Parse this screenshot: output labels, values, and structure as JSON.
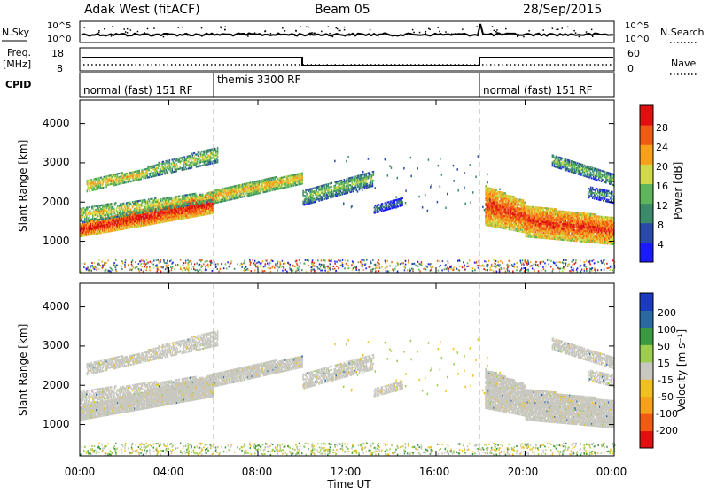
{
  "header": {
    "site": "Adak West (fitACF)",
    "beam": "Beam 05",
    "date": "28/Sep/2015"
  },
  "summary_panels": {
    "nsky_label": "N.Sky",
    "nsky_ticks": [
      "10^5",
      "10^0"
    ],
    "nsearch_label": "N.Search",
    "nsearch_ticks": [
      "10^5",
      "10^0"
    ],
    "freq_label_1": "Freq.",
    "freq_label_2": "[MHz]",
    "freq_ticks": [
      "18",
      "8"
    ],
    "nave_label": "Nave",
    "nave_ticks": [
      "60",
      "0"
    ],
    "cpid_label": "CPID",
    "cpid_segments": [
      {
        "label": "normal (fast) 151 RF",
        "start": 0,
        "end": 6
      },
      {
        "label": "themis 3300 RF",
        "start": 6,
        "end": 18
      },
      {
        "label": "normal (fast) 151 RF",
        "start": 18,
        "end": 24
      }
    ]
  },
  "power_panel": {
    "ylabel": "Slant Range [km]",
    "yticks": [
      "1000",
      "2000",
      "3000",
      "4000"
    ],
    "colorbar_label": "Power [dB]",
    "colorbar_ticks": [
      "4",
      "8",
      "12",
      "16",
      "20",
      "24",
      "28"
    ],
    "colorbar_colors": [
      "#1a1aff",
      "#2a4aa8",
      "#3b8a6a",
      "#5fb55a",
      "#cfd94a",
      "#f7a11a",
      "#f05a14",
      "#e01010"
    ]
  },
  "velocity_panel": {
    "ylabel": "Slant Range [km]",
    "yticks": [
      "1000",
      "2000",
      "3000",
      "4000"
    ],
    "colorbar_label": "Velocity [m s⁻¹]",
    "colorbar_ticks": [
      "-200",
      "-100",
      "-50",
      "-15",
      "15",
      "50",
      "100",
      "200"
    ],
    "colorbar_colors": [
      "#e01010",
      "#f05a14",
      "#f5a21a",
      "#f0c020",
      "#c8c8c0",
      "#9ccc50",
      "#3a9a40",
      "#2a6aa0",
      "#1a3ac0"
    ]
  },
  "xaxis": {
    "label": "Time UT",
    "ticks": [
      "00:00",
      "04:00",
      "08:00",
      "12:00",
      "16:00",
      "20:00",
      "00:00"
    ]
  },
  "chart_data": [
    {
      "type": "heatmap",
      "title": "Adak West (fitACF)  Beam 05  28/Sep/2015",
      "xlabel": "Time UT",
      "ylabel": "Slant Range [km]",
      "xlim": [
        0,
        24
      ],
      "ylim": [
        200,
        4600
      ],
      "colorbar": "Power [dB]",
      "colorbar_range": [
        0,
        32
      ],
      "scatter_bands": [
        {
          "t_start": 0.0,
          "t_end": 2.0,
          "r_start": 1200,
          "r_end": 1400,
          "value": 28
        },
        {
          "t_start": 2.0,
          "t_end": 6.0,
          "r_start": 1500,
          "r_end": 2100,
          "value": 24
        },
        {
          "t_start": 0.5,
          "t_end": 2.5,
          "r_start": 2200,
          "r_end": 2600,
          "value": 20
        },
        {
          "t_start": 2.5,
          "t_end": 6.0,
          "r_start": 2700,
          "r_end": 3300,
          "value": 16
        },
        {
          "t_start": 6.0,
          "t_end": 10.0,
          "r_start": 2000,
          "r_end": 2800,
          "value": 20
        },
        {
          "t_start": 10.0,
          "t_end": 13.0,
          "r_start": 2000,
          "r_end": 2700,
          "value": 16
        },
        {
          "t_start": 18.5,
          "t_end": 24.0,
          "r_start": 1100,
          "r_end": 2000,
          "value": 26
        },
        {
          "t_start": 21.5,
          "t_end": 24.0,
          "r_start": 2400,
          "r_end": 3200,
          "value": 16
        }
      ]
    },
    {
      "type": "heatmap",
      "title": "",
      "xlabel": "Time UT",
      "ylabel": "Slant Range [km]",
      "xlim": [
        0,
        24
      ],
      "ylim": [
        200,
        4600
      ],
      "colorbar": "Velocity [m s⁻¹]",
      "colorbar_range": [
        -200,
        200
      ],
      "note_values": "dominant velocity near 0 (-15..15 m/s, grey); sporadic -50 (orange) patches near 12-16 UT"
    }
  ]
}
